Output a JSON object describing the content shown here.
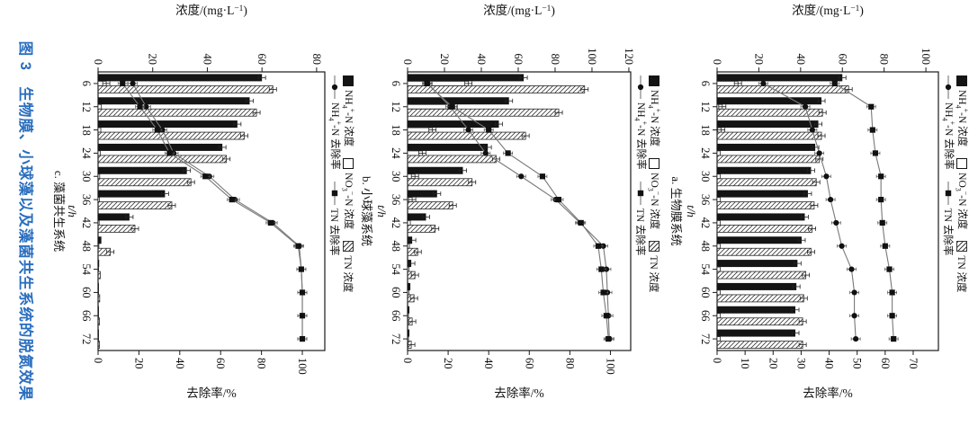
{
  "figure": {
    "caption": "图 3　生物膜、小球藻以及藻菌共生系统的脱氮效果",
    "caption_color": "#2a6ebf",
    "frame_color": "#1a1a1a",
    "line_color": "#787878",
    "marker_color": "#111111",
    "legend": {
      "row1": [
        {
          "swatch": "filled-square",
          "label": "NH~4~^+^-N 浓度"
        },
        {
          "swatch": "open-square",
          "label": "NO~3~^−^-N 浓度"
        },
        {
          "swatch": "hatched-square",
          "label": "TN 浓度"
        }
      ],
      "row2": [
        {
          "swatch": "circle-line",
          "label": "NH~4~^+^-N 去除率"
        },
        {
          "swatch": "square-line",
          "label": "TN 去除率"
        }
      ]
    }
  },
  "chart_data": [
    {
      "id": "a",
      "type": "bar+line",
      "subtitle": "a. 生物膜系统",
      "x_label": "t/h",
      "x": [
        6,
        12,
        18,
        24,
        30,
        36,
        42,
        48,
        54,
        60,
        66,
        72
      ],
      "conc_axis": {
        "label": "浓度/(mg·L^−1^)",
        "ticks": [
          0,
          20,
          40,
          60,
          80,
          100
        ],
        "axis_max": 106
      },
      "removal_axis": {
        "label": "去除率/%",
        "ticks": [
          0,
          10,
          20,
          30,
          40,
          50,
          60,
          70
        ],
        "axis_max": 79
      },
      "series_bars": [
        {
          "name": "NH4+-N 浓度",
          "style": "solid",
          "values": [
            60,
            50,
            48.5,
            47,
            45,
            43.5,
            42,
            40.5,
            38.5,
            38,
            37.5,
            37.5
          ]
        },
        {
          "name": "NO3--N 浓度",
          "style": "open",
          "values": [
            10,
            2.5,
            2,
            1.5,
            1.5,
            1.5,
            1.5,
            1.5,
            1.5,
            1.5,
            1.5,
            1.5
          ]
        },
        {
          "name": "TN 浓度",
          "style": "hatched",
          "values": [
            63,
            50.5,
            50,
            49,
            47.5,
            46.5,
            45.5,
            45,
            42.5,
            41.5,
            41,
            41
          ]
        }
      ],
      "series_lines": [
        {
          "name": "NH4+-N 去除率",
          "marker": "circle",
          "values": [
            16.5,
            31.5,
            34,
            36.5,
            39,
            40.5,
            42.5,
            44.5,
            48,
            49,
            49,
            49.5
          ]
        },
        {
          "name": "TN 去除率",
          "marker": "square",
          "values": [
            42,
            55,
            55.5,
            56.5,
            58.5,
            58.5,
            59,
            60,
            61.5,
            62.5,
            62.5,
            63
          ]
        }
      ]
    },
    {
      "id": "b",
      "type": "bar+line",
      "subtitle": "b. 小球藻系统",
      "x_label": "t/h",
      "x": [
        6,
        12,
        18,
        24,
        30,
        36,
        42,
        48,
        54,
        60,
        66,
        72
      ],
      "conc_axis": {
        "label": "浓度/(mg·L^−1^)",
        "ticks": [
          0,
          20,
          40,
          60,
          80,
          100,
          120
        ],
        "axis_max": 121
      },
      "removal_axis": {
        "label": "去除率/%",
        "ticks": [
          0,
          20,
          40,
          60,
          80,
          100
        ],
        "axis_max": 110
      },
      "series_bars": [
        {
          "name": "NH4+-N 浓度",
          "style": "solid",
          "values": [
            63,
            55,
            49.5,
            43.5,
            30,
            16,
            10,
            2.5,
            2,
            1.5,
            1,
            1
          ]
        },
        {
          "name": "NO3--N 浓度",
          "style": "open",
          "values": [
            33,
            25,
            13.5,
            8,
            4,
            2.5,
            1.5,
            1,
            0.8,
            0.8,
            0.5,
            0.5
          ]
        },
        {
          "name": "TN 浓度",
          "style": "hatched",
          "values": [
            96,
            82,
            64,
            48,
            35,
            24.5,
            15,
            5.5,
            4,
            3.5,
            2.5,
            2
          ]
        }
      ],
      "series_lines": [
        {
          "name": "NH4+-N 去除率",
          "marker": "circle",
          "values": [
            10,
            21,
            30,
            38.5,
            56,
            73,
            85,
            96.5,
            98,
            98.5,
            99,
            99.5
          ]
        },
        {
          "name": "TN 去除率",
          "marker": "square",
          "values": [
            9.5,
            22,
            40,
            49.5,
            66.5,
            74.5,
            85.5,
            94,
            95.5,
            96.5,
            98,
            99
          ]
        }
      ]
    },
    {
      "id": "c",
      "type": "bar+line",
      "subtitle": "c. 藻菌共生系统",
      "x_label": "t/h",
      "x": [
        6,
        12,
        18,
        24,
        30,
        36,
        42,
        48,
        54,
        60,
        66,
        72
      ],
      "conc_axis": {
        "label": "浓度/(mg·L^−1^)",
        "ticks": [
          0,
          20,
          40,
          60,
          80
        ],
        "axis_max": 83
      },
      "removal_axis": {
        "label": "去除率/%",
        "ticks": [
          0,
          20,
          40,
          60,
          80,
          100
        ],
        "axis_max": 111
      },
      "series_bars": [
        {
          "name": "NH4+-N 浓度",
          "style": "solid",
          "values": [
            60,
            55.5,
            51,
            45.5,
            32.5,
            24.5,
            11.5,
            1.2,
            0.4,
            0.3,
            0.3,
            0.3
          ]
        },
        {
          "name": "NO3--N 浓度",
          "style": "open",
          "values": [
            3,
            1.2,
            1,
            0.8,
            0.6,
            0.5,
            0.4,
            0.3,
            0.2,
            0.2,
            0.2,
            0.2
          ]
        },
        {
          "name": "TN 浓度",
          "style": "hatched",
          "values": [
            64,
            58,
            53.5,
            47,
            34,
            27,
            13.5,
            4.5,
            0.8,
            0.6,
            0.5,
            0.5
          ]
        }
      ],
      "series_lines": [
        {
          "name": "NH4+-N 去除率",
          "marker": "circle",
          "values": [
            17,
            23.5,
            31.5,
            37,
            54.5,
            67,
            85.5,
            98.5,
            99.5,
            100,
            100,
            100
          ]
        },
        {
          "name": "TN 去除率",
          "marker": "square",
          "values": [
            12,
            20.5,
            29,
            35,
            52.5,
            65.5,
            84.5,
            98,
            99.5,
            100,
            100,
            100
          ]
        }
      ]
    }
  ]
}
